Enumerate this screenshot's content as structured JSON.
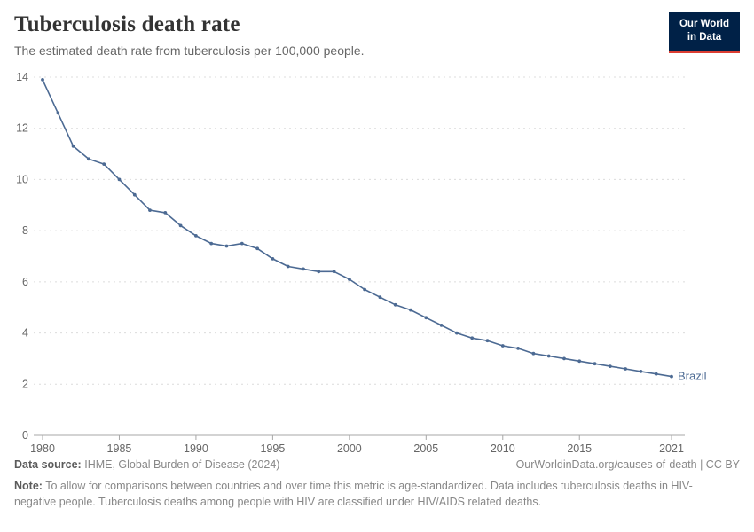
{
  "header": {
    "title": "Tuberculosis death rate",
    "subtitle": "The estimated death rate from tuberculosis per 100,000 people."
  },
  "logo": {
    "line1": "Our World",
    "line2": "in Data",
    "bg_color": "#002147",
    "accent_color": "#dc3e32"
  },
  "chart_data": {
    "type": "line",
    "title": "Tuberculosis death rate",
    "subtitle": "The estimated death rate from tuberculosis per 100,000 people.",
    "xlabel": "",
    "ylabel": "",
    "xlim": [
      1980,
      2021
    ],
    "ylim": [
      0,
      14
    ],
    "xticks": [
      1980,
      1985,
      1990,
      1995,
      2000,
      2005,
      2010,
      2015,
      2021
    ],
    "yticks": [
      0,
      2,
      4,
      6,
      8,
      10,
      12,
      14
    ],
    "grid": true,
    "legend_position": "end-of-line",
    "end_label": "Brazil",
    "series": [
      {
        "name": "Brazil",
        "color": "#4c6a93",
        "x": [
          1980,
          1981,
          1982,
          1983,
          1984,
          1985,
          1986,
          1987,
          1988,
          1989,
          1990,
          1991,
          1992,
          1993,
          1994,
          1995,
          1996,
          1997,
          1998,
          1999,
          2000,
          2001,
          2002,
          2003,
          2004,
          2005,
          2006,
          2007,
          2008,
          2009,
          2010,
          2011,
          2012,
          2013,
          2014,
          2015,
          2016,
          2017,
          2018,
          2019,
          2020,
          2021
        ],
        "values": [
          13.9,
          12.6,
          11.3,
          10.8,
          10.6,
          10.0,
          9.4,
          8.8,
          8.7,
          8.2,
          7.8,
          7.5,
          7.4,
          7.5,
          7.3,
          6.9,
          6.6,
          6.5,
          6.4,
          6.4,
          6.1,
          5.7,
          5.4,
          5.1,
          4.9,
          4.6,
          4.3,
          4.0,
          3.8,
          3.7,
          3.5,
          3.4,
          3.2,
          3.1,
          3.0,
          2.9,
          2.8,
          2.7,
          2.6,
          2.5,
          2.4,
          2.3
        ]
      }
    ]
  },
  "footer": {
    "source_label": "Data source:",
    "source_text": "IHME, Global Burden of Disease (2024)",
    "link": "OurWorldinData.org/causes-of-death | CC BY",
    "note_label": "Note:",
    "note_text": "To allow for comparisons between countries and over time this metric is age-standardized. Data includes tuberculosis deaths in HIV-negative people. Tuberculosis deaths among people with HIV are classified under HIV/AIDS related deaths."
  }
}
